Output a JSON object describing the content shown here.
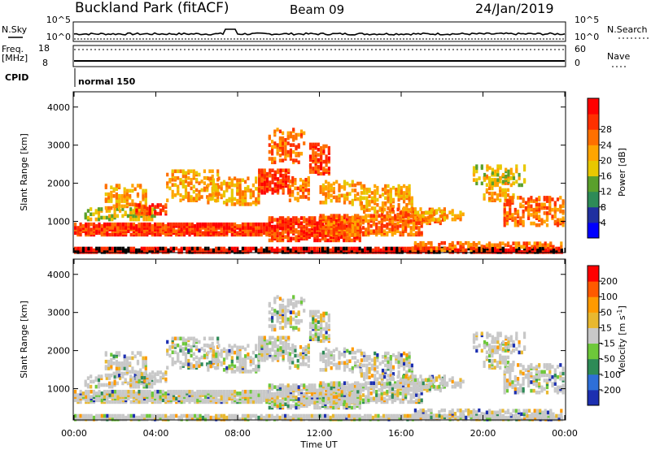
{
  "chart_data": [
    {
      "type": "heatmap",
      "panel": "header",
      "title_left": "Buckland Park (fitACF)",
      "title_center": "Beam 09",
      "title_right": "24/Jan/2019",
      "left_labels": [
        "N.Sky",
        "Freq.",
        "[MHz]",
        "CPID"
      ],
      "right_labels": [
        "N.Search",
        "Nave"
      ],
      "noise_ticks_left": [
        "10^5",
        "10^0"
      ],
      "noise_ticks_right": [
        "10^5",
        "10^0"
      ],
      "freq_ticks_left": [
        "18",
        "8"
      ],
      "nave_ticks_right": [
        "60",
        "0"
      ],
      "cpid_text": "normal 150"
    },
    {
      "type": "heatmap",
      "panel": "power",
      "ylabel": "Slant Range [km]",
      "ylim": [
        180,
        4400
      ],
      "yticks": [
        "1000",
        "2000",
        "3000",
        "4000"
      ],
      "xlim_hours": [
        0,
        24
      ],
      "colorbar_label": "Power [dB]",
      "colorbar_ticks": [
        "4",
        "8",
        "12",
        "16",
        "20",
        "24",
        "28"
      ],
      "colorbar_colors": [
        "#0000ff",
        "#2030a0",
        "#2e8b57",
        "#5aa02c",
        "#e8c800",
        "#ffa500",
        "#ff7000",
        "#ff3000",
        "#ff0000"
      ]
    },
    {
      "type": "heatmap",
      "panel": "velocity",
      "ylabel": "Slant Range [km]",
      "ylim": [
        180,
        4400
      ],
      "yticks": [
        "1000",
        "2000",
        "3000",
        "4000"
      ],
      "xlim_hours": [
        0,
        24
      ],
      "xticks": [
        "00:00",
        "04:00",
        "08:00",
        "12:00",
        "16:00",
        "20:00",
        "00:00"
      ],
      "xlabel": "Time UT",
      "colorbar_label": "Velocity",
      "colorbar_unit": "[m s",
      "colorbar_unit_exp": "-1",
      "colorbar_unit_close": "]",
      "colorbar_ticks": [
        "200",
        "100",
        "50",
        "15",
        "-15",
        "-50",
        "-100",
        "-200"
      ],
      "colorbar_colors": [
        "#1c2fb0",
        "#2e6fd8",
        "#2e8b57",
        "#6dc83a",
        "#c8c8c8",
        "#e8b830",
        "#ff9a00",
        "#ff5a00",
        "#ff0000"
      ]
    }
  ]
}
